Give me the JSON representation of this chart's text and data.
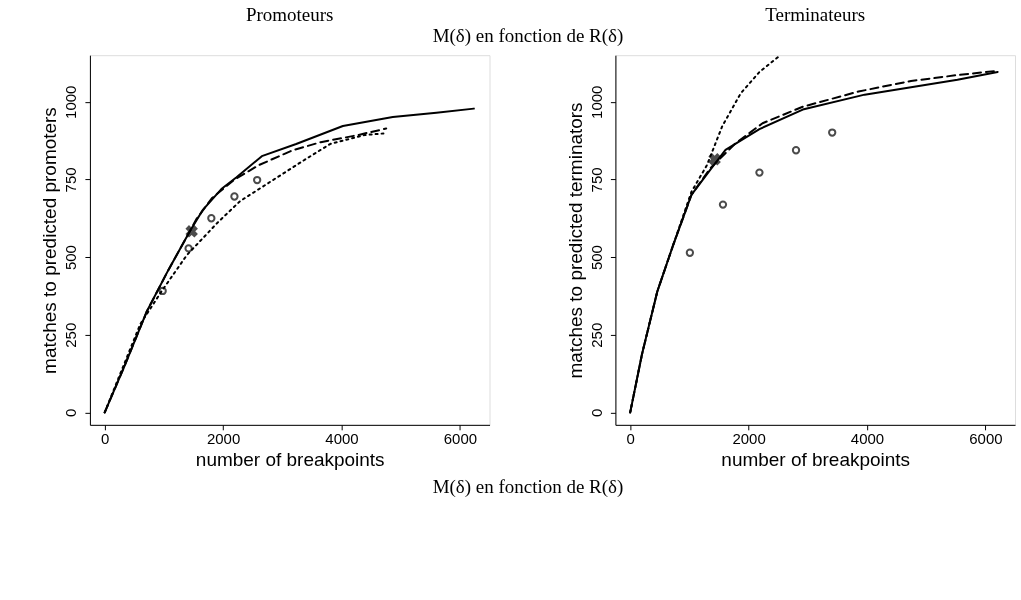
{
  "chart_data": [
    {
      "type": "line",
      "title": "Promoteurs",
      "xlabel": "number of breakpoints",
      "ylabel": "matches to predicted promoters",
      "annotations": [
        "M(δ) en fonction de R(δ)"
      ],
      "xlim": [
        -250,
        6500
      ],
      "ylim": [
        -40,
        1150
      ],
      "xticks": [
        0,
        2000,
        4000,
        6000
      ],
      "yticks": [
        0,
        250,
        500,
        750,
        1000
      ],
      "grid": false,
      "series": [
        {
          "type": "line",
          "line_style": "solid",
          "marker": "none",
          "color": "#000000",
          "x": [
            0,
            332,
            706,
            1074,
            1438,
            1654,
            1970,
            2227,
            2654,
            3234,
            4023,
            4866,
            5603,
            6235
          ],
          "values": [
            0,
            148,
            323,
            458,
            583,
            651,
            719,
            757,
            825,
            864,
            922,
            951,
            965,
            978
          ]
        },
        {
          "type": "line",
          "line_style": "dashed",
          "marker": "none",
          "color": "#000000",
          "x": [
            0,
            332,
            706,
            1074,
            1438,
            1548,
            1812,
            2180,
            2602,
            3175,
            3650,
            4281,
            4755
          ],
          "values": [
            0,
            148,
            323,
            458,
            583,
            622,
            690,
            748,
            796,
            844,
            870,
            893,
            914
          ]
        },
        {
          "type": "line",
          "line_style": "dotted",
          "marker": "none",
          "color": "#000000",
          "x": [
            0,
            232,
            600,
            964,
            1390,
            1912,
            2286,
            2760,
            3392,
            3807,
            4392,
            4708
          ],
          "values": [
            0,
            110,
            284,
            391,
            507,
            612,
            680,
            738,
            815,
            864,
            893,
            898
          ]
        },
        {
          "type": "scatter",
          "marker": "circle",
          "color": "#000000",
          "x": [
            979,
            1417,
            1801,
            2191,
            2575
          ],
          "values": [
            391,
            528,
            625,
            695,
            748
          ]
        },
        {
          "type": "scatter",
          "marker": "cross",
          "color": "#000000",
          "x": [
            1469
          ],
          "values": [
            583
          ]
        }
      ]
    },
    {
      "type": "line",
      "title": "Terminateurs",
      "xlabel": "number of breakpoints",
      "ylabel": "matches to predicted terminators",
      "annotations": [
        "M(δ) en fonction de R(δ)"
      ],
      "xlim": [
        -250,
        6500
      ],
      "ylim": [
        -40,
        1150
      ],
      "xticks": [
        0,
        2000,
        4000,
        6000
      ],
      "yticks": [
        0,
        250,
        500,
        750,
        1000
      ],
      "grid": false,
      "series": [
        {
          "type": "line",
          "line_style": "solid",
          "marker": "none",
          "color": "#000000",
          "x": [
            0,
            199,
            459,
            721,
            1034,
            1348,
            1610,
            2183,
            2915,
            3960,
            4744,
            5528,
            6207
          ],
          "values": [
            0,
            187,
            390,
            536,
            700,
            780,
            845,
            912,
            975,
            1023,
            1047,
            1071,
            1096
          ]
        },
        {
          "type": "line",
          "line_style": "dashed",
          "marker": "none",
          "color": "#000000",
          "x": [
            0,
            199,
            459,
            721,
            1034,
            1348,
            1766,
            2236,
            2915,
            3856,
            4744,
            5528,
            6207
          ],
          "values": [
            0,
            187,
            390,
            536,
            700,
            785,
            864,
            931,
            984,
            1033,
            1067,
            1086,
            1100
          ]
        },
        {
          "type": "line",
          "line_style": "dotted",
          "marker": "none",
          "color": "#000000",
          "x": [
            0,
            199,
            459,
            721,
            1034,
            1296,
            1556,
            1870,
            2183,
            2497
          ],
          "values": [
            0,
            187,
            390,
            536,
            710,
            796,
            922,
            1028,
            1096,
            1144
          ]
        },
        {
          "type": "scatter",
          "marker": "circle",
          "color": "#000000",
          "x": [
            1008,
            1567,
            2183,
            2801,
            3412
          ],
          "values": [
            514,
            669,
            772,
            844,
            901
          ]
        },
        {
          "type": "scatter",
          "marker": "cross",
          "color": "#000000",
          "x": [
            1426
          ],
          "values": [
            815
          ]
        }
      ]
    }
  ]
}
